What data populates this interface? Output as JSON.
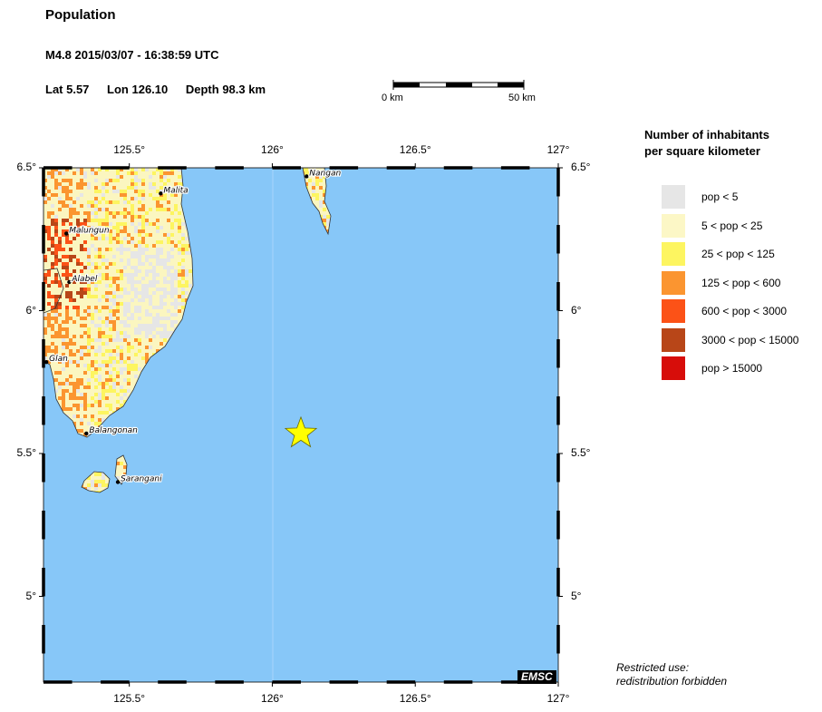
{
  "header": {
    "title": "Population",
    "event": "M4.8  2015/03/07 - 16:38:59 UTC",
    "lat": "Lat  5.57",
    "lon": "Lon 126.10",
    "depth": "Depth  98.3 km"
  },
  "scalebar": {
    "left_label": "0 km",
    "right_label": "50 km"
  },
  "map": {
    "lon_range": [
      125.2,
      127.0
    ],
    "lat_range": [
      4.7,
      6.5
    ],
    "lon_ticks": [
      {
        "value": 125.5,
        "label": "125.5°"
      },
      {
        "value": 126.0,
        "label": "126°"
      },
      {
        "value": 126.5,
        "label": "126.5°"
      },
      {
        "value": 127.0,
        "label": "127°"
      }
    ],
    "lat_ticks": [
      {
        "value": 6.5,
        "label": "6.5°"
      },
      {
        "value": 6.0,
        "label": "6°"
      },
      {
        "value": 5.5,
        "label": "5.5°"
      },
      {
        "value": 5.0,
        "label": "5°"
      }
    ],
    "epicenter": {
      "lat": 5.57,
      "lon": 126.1,
      "color": "#ffff00"
    },
    "cities": [
      {
        "name": "Nangan",
        "lat": 6.47,
        "lon": 126.12
      },
      {
        "name": "Malita",
        "lat": 6.41,
        "lon": 125.61
      },
      {
        "name": "Malungun",
        "lat": 6.27,
        "lon": 125.28
      },
      {
        "name": "Alabel",
        "lat": 6.1,
        "lon": 125.29
      },
      {
        "name": "Glan",
        "lat": 5.82,
        "lon": 125.21
      },
      {
        "name": "Balangonan",
        "lat": 5.57,
        "lon": 125.35
      },
      {
        "name": "Sarangani",
        "lat": 5.4,
        "lon": 125.46
      }
    ],
    "colors": {
      "sea": "#87c7f8",
      "land": "#fbf6c0"
    },
    "badge": "EMSC"
  },
  "legend": {
    "title_line1": "Number of inhabitants",
    "title_line2": "per square kilometer",
    "items": [
      {
        "label": "pop < 5",
        "color": "#e6e6e6"
      },
      {
        "label": "5 < pop < 25",
        "color": "#fcf7c6"
      },
      {
        "label": "25 < pop < 125",
        "color": "#fdf560"
      },
      {
        "label": "125 < pop < 600",
        "color": "#fb9530"
      },
      {
        "label": "600 < pop < 3000",
        "color": "#fc5217"
      },
      {
        "label": "3000 < pop < 15000",
        "color": "#b84618"
      },
      {
        "label": "pop > 15000",
        "color": "#d70d0a"
      }
    ]
  },
  "footer": {
    "line1": "Restricted use:",
    "line2": "redistribution forbidden"
  }
}
